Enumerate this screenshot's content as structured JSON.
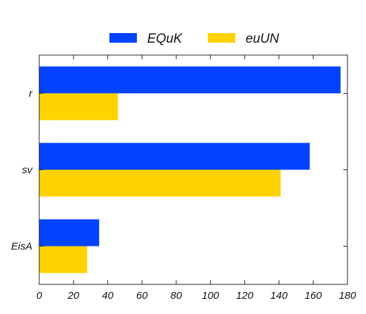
{
  "chart_data": {
    "type": "bar",
    "orientation": "horizontal",
    "categories": [
      "r",
      "sv",
      "EisA"
    ],
    "series": [
      {
        "name": "EQuK",
        "color": "#0343ff",
        "values": [
          176,
          158,
          35
        ]
      },
      {
        "name": "euUN",
        "color": "#ffd300",
        "values": [
          46,
          141,
          28
        ]
      }
    ],
    "xlim": [
      0,
      180
    ],
    "xticks": [
      0,
      20,
      40,
      60,
      80,
      100,
      120,
      140,
      160,
      180
    ],
    "title": "",
    "xlabel": "",
    "ylabel": "",
    "grid": false,
    "legend": "top-center"
  }
}
